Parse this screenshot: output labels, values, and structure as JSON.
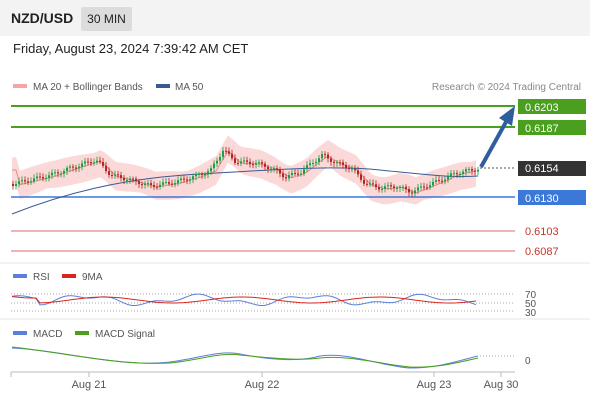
{
  "header": {
    "pair": "NZD/USD",
    "timeframe": "30 MIN",
    "datetime": "Friday, August 23, 2024 7:39:42 AM CET"
  },
  "legend": {
    "ma20": "MA 20 + Bollinger Bands",
    "ma50": "MA 50",
    "credit": "Research © 2024 Trading Central"
  },
  "levels": {
    "r2": "0.6203",
    "r1": "0.6187",
    "last": "0.6154",
    "pivot": "0.6130",
    "s1": "0.6103",
    "s2": "0.6087"
  },
  "rsi": {
    "label": "RSI",
    "ma_label": "9MA",
    "ticks": [
      "70",
      "50",
      "30"
    ]
  },
  "macd": {
    "label": "MACD",
    "signal_label": "MACD Signal",
    "tick": "0"
  },
  "xaxis": [
    "Aug 21",
    "Aug 22",
    "Aug 23",
    "Aug 30"
  ],
  "colors": {
    "resistance": "#4aa01e",
    "pivot": "#3c78d8",
    "support": "#e06666",
    "arrow": "#2f5d9e",
    "bull": "#1a9e46",
    "bear": "#b3261e",
    "ma50": "#3a5a96",
    "rsi": "#5a7fdc",
    "macd_signal": "#4aa01e"
  },
  "chart_data": {
    "type": "line",
    "last_price": 0.6154,
    "levels": [
      0.6203,
      0.6187,
      0.613,
      0.6103,
      0.6087
    ],
    "x_ticks": [
      "Aug 21",
      "Aug 22",
      "Aug 23",
      "Aug 30"
    ],
    "rsi_ticks": [
      70,
      50,
      30
    ],
    "macd_ticks": [
      0
    ]
  }
}
